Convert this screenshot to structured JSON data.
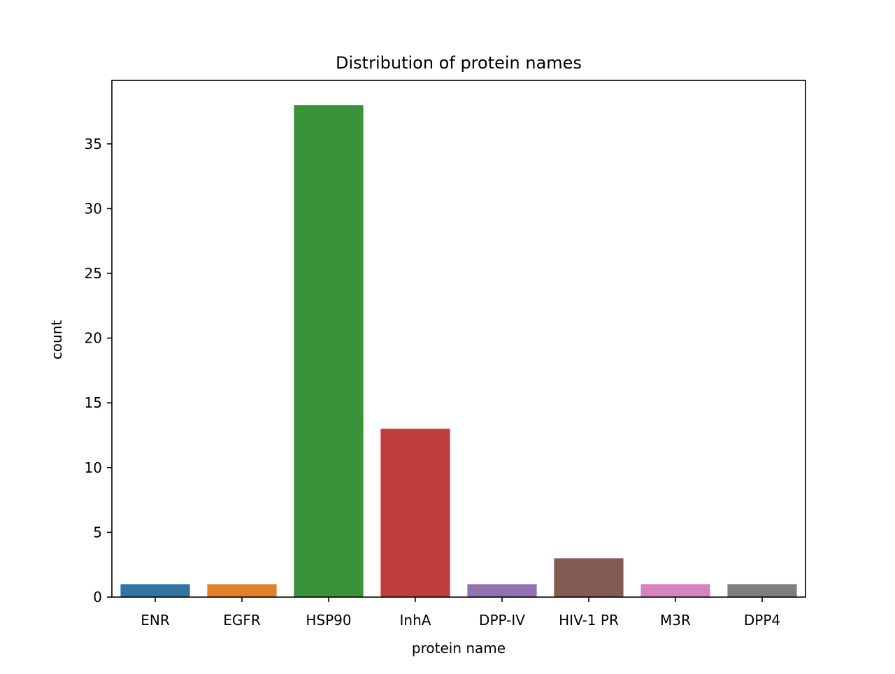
{
  "chart_data": {
    "type": "bar",
    "title": "Distribution of protein names",
    "xlabel": "protein name",
    "ylabel": "count",
    "categories": [
      "ENR",
      "EGFR",
      "HSP90",
      "InhA",
      "DPP-IV",
      "HIV-1 PR",
      "M3R",
      "DPP4"
    ],
    "values": [
      1,
      1,
      38,
      13,
      1,
      3,
      1,
      1
    ],
    "colors": [
      "#3274a1",
      "#e1812c",
      "#3a923a",
      "#c03d3e",
      "#9372b2",
      "#845b53",
      "#d684bd",
      "#7f7f7f"
    ],
    "ylim": [
      0,
      39.9
    ],
    "yticks": [
      0,
      5,
      10,
      15,
      20,
      25,
      30,
      35
    ],
    "grid": false,
    "legend": "none"
  }
}
